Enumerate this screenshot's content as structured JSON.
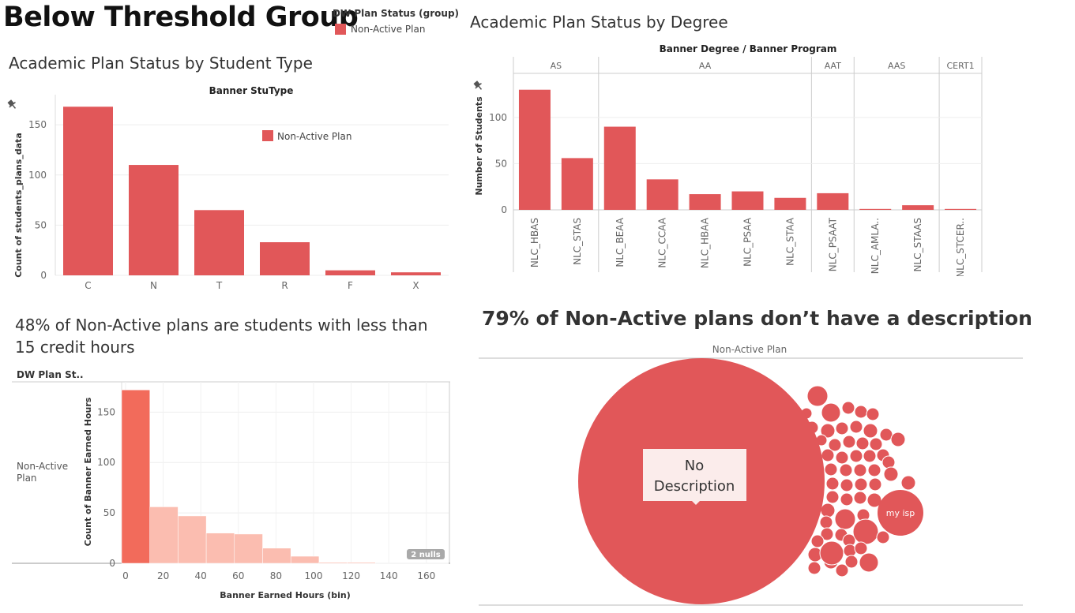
{
  "dashboard": {
    "title": "Below Threshold Group",
    "legend": {
      "title": "DW Plan Status (group)",
      "items": [
        {
          "label": "Non-Active Plan",
          "color": "#e15759"
        }
      ]
    }
  },
  "panel1": {
    "title": "Academic Plan Status by Student Type",
    "header": "Banner StuType",
    "inline_legend": "Non-Active Plan",
    "pin_icon": "pin-icon"
  },
  "panel2": {
    "title": "Academic Plan Status by Degree",
    "header": "Banner Degree  /  Banner Program",
    "pin_icon": "pin-icon"
  },
  "panel3": {
    "title": "48% of Non-Active plans are students with less than 15 credit hours",
    "row_header": "DW Plan St..",
    "row_label": "Non-Active Plan",
    "nulls_badge": "2 nulls"
  },
  "panel4": {
    "title": "79% of Non-Active plans don’t have a description",
    "header": "Non-Active Plan",
    "big_label": "No Description",
    "small_label": "my isp"
  },
  "chart_data": [
    {
      "id": "stutype",
      "type": "bar",
      "title": "Academic Plan Status by Student Type",
      "xlabel": "Banner StuType",
      "ylabel": "Count of students_plans_data",
      "categories": [
        "C",
        "N",
        "T",
        "R",
        "F",
        "X"
      ],
      "series": [
        {
          "name": "Non-Active Plan",
          "values": [
            168,
            110,
            65,
            33,
            5,
            3
          ]
        }
      ],
      "ylim": [
        0,
        180
      ],
      "yticks": [
        0,
        50,
        100,
        150
      ],
      "color": "#e15759",
      "grid": true
    },
    {
      "id": "degree",
      "type": "bar",
      "title": "Academic Plan Status by Degree",
      "xlabel": "Banner Degree / Banner Program",
      "ylabel": "Number of Students",
      "groups": [
        {
          "degree": "AS",
          "programs": [
            "NLC_HBAS",
            "NLC_STAS"
          ],
          "values": [
            130,
            56
          ]
        },
        {
          "degree": "AA",
          "programs": [
            "NLC_BEAA",
            "NLC_CCAA",
            "NLC_HBAA",
            "NLC_PSAA",
            "NLC_STAA"
          ],
          "values": [
            90,
            33,
            17,
            20,
            13
          ]
        },
        {
          "degree": "AAT",
          "programs": [
            "NLC_PSAAT"
          ],
          "values": [
            18
          ]
        },
        {
          "degree": "AAS",
          "programs": [
            "NLC_AMLA..",
            "NLC_STAAS"
          ],
          "values": [
            1,
            5
          ]
        },
        {
          "degree": "CERT1",
          "programs": [
            "NLC_STCER.."
          ],
          "values": [
            1
          ]
        }
      ],
      "ylim": [
        0,
        140
      ],
      "yticks": [
        0,
        50,
        100
      ],
      "color": "#e15759",
      "grid": true
    },
    {
      "id": "hours",
      "type": "bar",
      "title": "48% of Non-Active plans are students with less than 15 credit hours",
      "xlabel": "Banner Earned Hours (bin)",
      "ylabel": "Count of Banner Earned Hours",
      "bin_width": 15,
      "bins": [
        0,
        15,
        30,
        45,
        60,
        75,
        90,
        105,
        120,
        135
      ],
      "values": [
        172,
        56,
        47,
        30,
        29,
        15,
        7,
        1,
        1,
        0
      ],
      "highlight_bin": 0,
      "colors": {
        "highlight": "#f26b5b",
        "normal": "#fbbdb0"
      },
      "xlim": [
        0,
        170
      ],
      "ylim": [
        0,
        180
      ],
      "xticks": [
        0,
        20,
        40,
        60,
        80,
        100,
        120,
        140,
        160
      ],
      "yticks": [
        0,
        50,
        100,
        150
      ],
      "grid": true
    },
    {
      "id": "description",
      "type": "packed-bubble",
      "title": "79% of Non-Active plans don’t have a description",
      "series": [
        {
          "name": "Non-Active Plan",
          "labels": [
            "No Description",
            "my isp"
          ],
          "values": [
            79,
            2.5
          ]
        }
      ],
      "color": "#e15759"
    }
  ]
}
